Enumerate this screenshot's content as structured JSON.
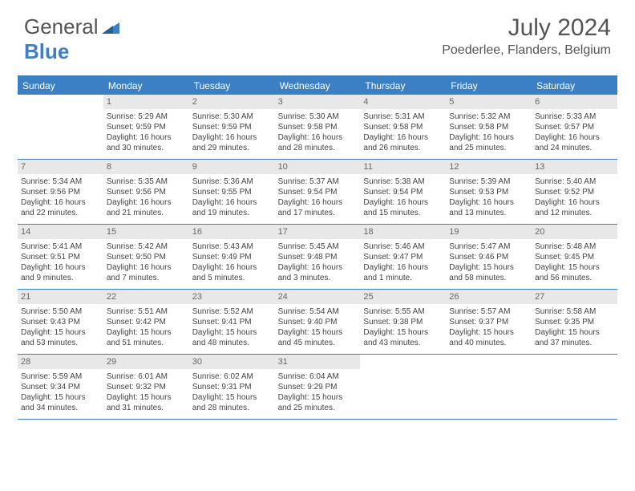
{
  "logo": {
    "text1": "General",
    "text2": "Blue"
  },
  "title": "July 2024",
  "location": "Poederlee, Flanders, Belgium",
  "dayHeaders": [
    "Sunday",
    "Monday",
    "Tuesday",
    "Wednesday",
    "Thursday",
    "Friday",
    "Saturday"
  ],
  "colors": {
    "accent": "#3b7fc4",
    "dayNumBg": "#e8e8e8",
    "text": "#444"
  },
  "weeks": [
    [
      {
        "day": "",
        "sunrise": "",
        "sunset": "",
        "daylight": ""
      },
      {
        "day": "1",
        "sunrise": "Sunrise: 5:29 AM",
        "sunset": "Sunset: 9:59 PM",
        "daylight": "Daylight: 16 hours and 30 minutes."
      },
      {
        "day": "2",
        "sunrise": "Sunrise: 5:30 AM",
        "sunset": "Sunset: 9:59 PM",
        "daylight": "Daylight: 16 hours and 29 minutes."
      },
      {
        "day": "3",
        "sunrise": "Sunrise: 5:30 AM",
        "sunset": "Sunset: 9:58 PM",
        "daylight": "Daylight: 16 hours and 28 minutes."
      },
      {
        "day": "4",
        "sunrise": "Sunrise: 5:31 AM",
        "sunset": "Sunset: 9:58 PM",
        "daylight": "Daylight: 16 hours and 26 minutes."
      },
      {
        "day": "5",
        "sunrise": "Sunrise: 5:32 AM",
        "sunset": "Sunset: 9:58 PM",
        "daylight": "Daylight: 16 hours and 25 minutes."
      },
      {
        "day": "6",
        "sunrise": "Sunrise: 5:33 AM",
        "sunset": "Sunset: 9:57 PM",
        "daylight": "Daylight: 16 hours and 24 minutes."
      }
    ],
    [
      {
        "day": "7",
        "sunrise": "Sunrise: 5:34 AM",
        "sunset": "Sunset: 9:56 PM",
        "daylight": "Daylight: 16 hours and 22 minutes."
      },
      {
        "day": "8",
        "sunrise": "Sunrise: 5:35 AM",
        "sunset": "Sunset: 9:56 PM",
        "daylight": "Daylight: 16 hours and 21 minutes."
      },
      {
        "day": "9",
        "sunrise": "Sunrise: 5:36 AM",
        "sunset": "Sunset: 9:55 PM",
        "daylight": "Daylight: 16 hours and 19 minutes."
      },
      {
        "day": "10",
        "sunrise": "Sunrise: 5:37 AM",
        "sunset": "Sunset: 9:54 PM",
        "daylight": "Daylight: 16 hours and 17 minutes."
      },
      {
        "day": "11",
        "sunrise": "Sunrise: 5:38 AM",
        "sunset": "Sunset: 9:54 PM",
        "daylight": "Daylight: 16 hours and 15 minutes."
      },
      {
        "day": "12",
        "sunrise": "Sunrise: 5:39 AM",
        "sunset": "Sunset: 9:53 PM",
        "daylight": "Daylight: 16 hours and 13 minutes."
      },
      {
        "day": "13",
        "sunrise": "Sunrise: 5:40 AM",
        "sunset": "Sunset: 9:52 PM",
        "daylight": "Daylight: 16 hours and 12 minutes."
      }
    ],
    [
      {
        "day": "14",
        "sunrise": "Sunrise: 5:41 AM",
        "sunset": "Sunset: 9:51 PM",
        "daylight": "Daylight: 16 hours and 9 minutes."
      },
      {
        "day": "15",
        "sunrise": "Sunrise: 5:42 AM",
        "sunset": "Sunset: 9:50 PM",
        "daylight": "Daylight: 16 hours and 7 minutes."
      },
      {
        "day": "16",
        "sunrise": "Sunrise: 5:43 AM",
        "sunset": "Sunset: 9:49 PM",
        "daylight": "Daylight: 16 hours and 5 minutes."
      },
      {
        "day": "17",
        "sunrise": "Sunrise: 5:45 AM",
        "sunset": "Sunset: 9:48 PM",
        "daylight": "Daylight: 16 hours and 3 minutes."
      },
      {
        "day": "18",
        "sunrise": "Sunrise: 5:46 AM",
        "sunset": "Sunset: 9:47 PM",
        "daylight": "Daylight: 16 hours and 1 minute."
      },
      {
        "day": "19",
        "sunrise": "Sunrise: 5:47 AM",
        "sunset": "Sunset: 9:46 PM",
        "daylight": "Daylight: 15 hours and 58 minutes."
      },
      {
        "day": "20",
        "sunrise": "Sunrise: 5:48 AM",
        "sunset": "Sunset: 9:45 PM",
        "daylight": "Daylight: 15 hours and 56 minutes."
      }
    ],
    [
      {
        "day": "21",
        "sunrise": "Sunrise: 5:50 AM",
        "sunset": "Sunset: 9:43 PM",
        "daylight": "Daylight: 15 hours and 53 minutes."
      },
      {
        "day": "22",
        "sunrise": "Sunrise: 5:51 AM",
        "sunset": "Sunset: 9:42 PM",
        "daylight": "Daylight: 15 hours and 51 minutes."
      },
      {
        "day": "23",
        "sunrise": "Sunrise: 5:52 AM",
        "sunset": "Sunset: 9:41 PM",
        "daylight": "Daylight: 15 hours and 48 minutes."
      },
      {
        "day": "24",
        "sunrise": "Sunrise: 5:54 AM",
        "sunset": "Sunset: 9:40 PM",
        "daylight": "Daylight: 15 hours and 45 minutes."
      },
      {
        "day": "25",
        "sunrise": "Sunrise: 5:55 AM",
        "sunset": "Sunset: 9:38 PM",
        "daylight": "Daylight: 15 hours and 43 minutes."
      },
      {
        "day": "26",
        "sunrise": "Sunrise: 5:57 AM",
        "sunset": "Sunset: 9:37 PM",
        "daylight": "Daylight: 15 hours and 40 minutes."
      },
      {
        "day": "27",
        "sunrise": "Sunrise: 5:58 AM",
        "sunset": "Sunset: 9:35 PM",
        "daylight": "Daylight: 15 hours and 37 minutes."
      }
    ],
    [
      {
        "day": "28",
        "sunrise": "Sunrise: 5:59 AM",
        "sunset": "Sunset: 9:34 PM",
        "daylight": "Daylight: 15 hours and 34 minutes."
      },
      {
        "day": "29",
        "sunrise": "Sunrise: 6:01 AM",
        "sunset": "Sunset: 9:32 PM",
        "daylight": "Daylight: 15 hours and 31 minutes."
      },
      {
        "day": "30",
        "sunrise": "Sunrise: 6:02 AM",
        "sunset": "Sunset: 9:31 PM",
        "daylight": "Daylight: 15 hours and 28 minutes."
      },
      {
        "day": "31",
        "sunrise": "Sunrise: 6:04 AM",
        "sunset": "Sunset: 9:29 PM",
        "daylight": "Daylight: 15 hours and 25 minutes."
      },
      {
        "day": "",
        "sunrise": "",
        "sunset": "",
        "daylight": ""
      },
      {
        "day": "",
        "sunrise": "",
        "sunset": "",
        "daylight": ""
      },
      {
        "day": "",
        "sunrise": "",
        "sunset": "",
        "daylight": ""
      }
    ]
  ]
}
